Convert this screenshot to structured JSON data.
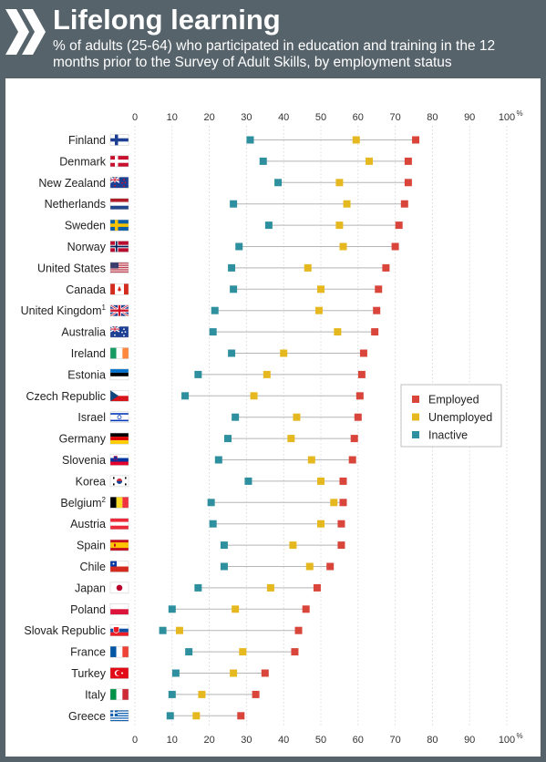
{
  "header": {
    "title": "Lifelong learning",
    "subtitle": "% of adults (25-64) who participated in education and training in the 12 months prior to the Survey of Adult Skills, by employment status"
  },
  "chart_data": {
    "type": "dot",
    "title": "Lifelong learning",
    "xlim": [
      0,
      100
    ],
    "xticks": [
      "0",
      "10",
      "20",
      "30",
      "40",
      "50",
      "60",
      "70",
      "80",
      "90",
      "100"
    ],
    "unit": "%",
    "legend_position": "right",
    "categories": [
      {
        "name": "Finland",
        "sup": ""
      },
      {
        "name": "Denmark",
        "sup": ""
      },
      {
        "name": "New Zealand",
        "sup": ""
      },
      {
        "name": "Netherlands",
        "sup": ""
      },
      {
        "name": "Sweden",
        "sup": ""
      },
      {
        "name": "Norway",
        "sup": ""
      },
      {
        "name": "United States",
        "sup": ""
      },
      {
        "name": "Canada",
        "sup": ""
      },
      {
        "name": "United Kingdom",
        "sup": "1"
      },
      {
        "name": "Australia",
        "sup": ""
      },
      {
        "name": "Ireland",
        "sup": ""
      },
      {
        "name": "Estonia",
        "sup": ""
      },
      {
        "name": "Czech Republic",
        "sup": ""
      },
      {
        "name": "Israel",
        "sup": ""
      },
      {
        "name": "Germany",
        "sup": ""
      },
      {
        "name": "Slovenia",
        "sup": ""
      },
      {
        "name": "Korea",
        "sup": ""
      },
      {
        "name": "Belgium",
        "sup": "2"
      },
      {
        "name": "Austria",
        "sup": ""
      },
      {
        "name": "Spain",
        "sup": ""
      },
      {
        "name": "Chile",
        "sup": ""
      },
      {
        "name": "Japan",
        "sup": ""
      },
      {
        "name": "Poland",
        "sup": ""
      },
      {
        "name": "Slovak Republic",
        "sup": ""
      },
      {
        "name": "France",
        "sup": ""
      },
      {
        "name": "Turkey",
        "sup": ""
      },
      {
        "name": "Italy",
        "sup": ""
      },
      {
        "name": "Greece",
        "sup": ""
      }
    ],
    "series": [
      {
        "name": "Employed",
        "color": "#d9453b",
        "values": [
          75.5,
          73.5,
          73.5,
          72.5,
          71,
          70,
          67.5,
          65.5,
          65,
          64.5,
          61.5,
          61,
          60.5,
          60,
          59,
          58.5,
          56,
          56,
          55.5,
          55.5,
          52.5,
          49,
          46,
          44,
          43,
          35,
          32.5,
          28.5
        ]
      },
      {
        "name": "Unemployed",
        "color": "#e6b820",
        "values": [
          59.5,
          63,
          55,
          57,
          55,
          56,
          46.5,
          50,
          49.5,
          54.5,
          40,
          35.5,
          32,
          43.5,
          42,
          47.5,
          50,
          53.5,
          50,
          42.5,
          47,
          36.5,
          27,
          12,
          29,
          26.5,
          18,
          16.5
        ]
      },
      {
        "name": "Inactive",
        "color": "#2e8f9e",
        "values": [
          31,
          34.5,
          38.5,
          26.5,
          36,
          28,
          26,
          26.5,
          21.5,
          21,
          26,
          17,
          13.5,
          27,
          25,
          22.5,
          30.5,
          20.5,
          21,
          24,
          24,
          17,
          10,
          7.5,
          14.5,
          11,
          10,
          9.5
        ]
      }
    ]
  }
}
